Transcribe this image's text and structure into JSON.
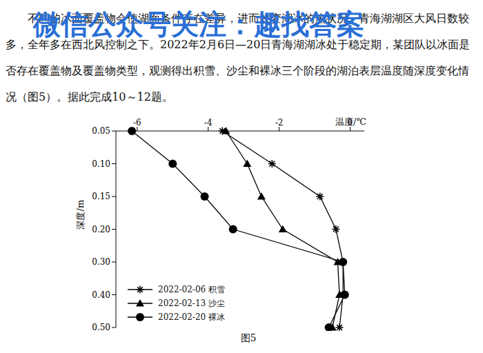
{
  "watermark": "微信公众号关注：趣找答案",
  "paragraph": "不同的冰面覆盖物会使湖面条件存在差异，进而改变湖冰的热状况。青海湖湖区大风日数较多，全年多在西北风控制之下。2022年2月6日—20日青海湖湖冰处于稳定期，某团队以冰面是否存在覆盖物及覆盖物类型，观测得出积雪、沙尘和裸冰三个阶段的湖泊表层温度随深度变化情况（图5）。据此完成10～12题。",
  "caption": "图5",
  "chart_data": {
    "type": "line",
    "orientation": "horizontal",
    "x_label": "温度/℃",
    "y_label": "深度/m",
    "categories": [
      "0.05",
      "0.10",
      "0.15",
      "0.20",
      "0.30",
      "0.40",
      "0.50"
    ],
    "xlim": [
      -6.6,
      0.4
    ],
    "xticks": [
      -6,
      -4,
      -2,
      0
    ],
    "grid": false,
    "legend": "lower left",
    "series": [
      {
        "name": "2022-02-06 积雪",
        "color": "#000000",
        "marker": "star",
        "values": [
          -3.6,
          -2.2,
          -0.85,
          -0.4,
          -0.2,
          -0.2,
          -0.3
        ]
      },
      {
        "name": "2022-02-13 沙尘",
        "color": "#000000",
        "marker": "triangle",
        "values": [
          -3.5,
          -2.9,
          -2.5,
          -1.9,
          -0.35,
          -0.3,
          -0.5
        ]
      },
      {
        "name": "2022-02-20 裸冰",
        "color": "#000000",
        "marker": "circle",
        "values": [
          -6.15,
          -5.0,
          -4.1,
          -3.3,
          -0.2,
          -0.15,
          -0.6
        ]
      }
    ]
  }
}
